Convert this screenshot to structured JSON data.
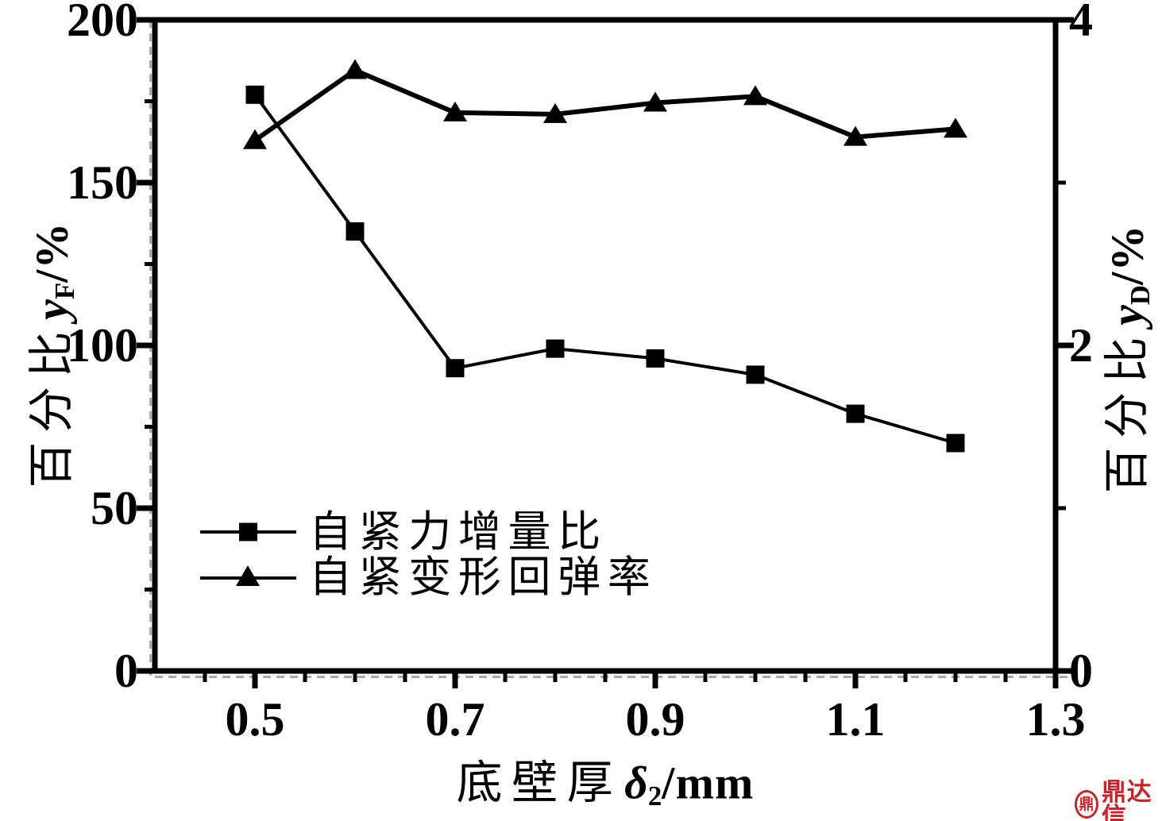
{
  "chart_data": {
    "type": "line",
    "title": "",
    "x_axis": {
      "label_cjk": "底壁厚",
      "label_var": "δ",
      "label_sub": "2",
      "label_unit": "/mm",
      "range": [
        0.4,
        1.3
      ],
      "major_ticks": [
        0.5,
        0.7,
        0.9,
        1.1,
        1.3
      ],
      "major_tick_labels": [
        "0.5",
        "0.7",
        "0.9",
        "1.1",
        "1.3"
      ],
      "minor_ticks": [
        0.45,
        0.55,
        0.6,
        0.65,
        0.75,
        0.8,
        0.85,
        0.95,
        1.0,
        1.05,
        1.15,
        1.2,
        1.25
      ]
    },
    "y_left_axis": {
      "label_cjk": "百分比",
      "label_var": "y",
      "label_sub": "F",
      "label_unit": "/%",
      "range": [
        0,
        200
      ],
      "major_ticks": [
        0,
        50,
        100,
        150,
        200
      ],
      "major_tick_labels": [
        "0",
        "50",
        "100",
        "150",
        "200"
      ],
      "minor_ticks": [
        25,
        75,
        125,
        175
      ]
    },
    "y_right_axis": {
      "label_cjk": "百分比",
      "label_var": "y",
      "label_sub": "D",
      "label_unit": "/%",
      "range": [
        0,
        4
      ],
      "major_ticks": [
        0,
        2,
        4
      ],
      "major_tick_labels": [
        "0",
        "2",
        "4"
      ],
      "minor_ticks": [
        1,
        3
      ]
    },
    "x": [
      0.5,
      0.6,
      0.7,
      0.8,
      0.9,
      1.0,
      1.1,
      1.2
    ],
    "series": [
      {
        "name": "自紧力增量比",
        "marker": "square",
        "y_axis": "left",
        "values": [
          177,
          135,
          93,
          99,
          96,
          91,
          79,
          70
        ]
      },
      {
        "name": "自紧变形回弹率",
        "marker": "triangle",
        "y_axis": "right",
        "values": [
          3.26,
          3.69,
          3.43,
          3.42,
          3.49,
          3.53,
          3.28,
          3.33
        ]
      }
    ],
    "grid": false,
    "legend_position": "inside-lower-left",
    "colors": {
      "line": "#000000",
      "background": "#ffffff"
    }
  },
  "watermark": {
    "text": "鼎达信",
    "emblem_glyph": "鼎",
    "color": "#c1272d"
  }
}
